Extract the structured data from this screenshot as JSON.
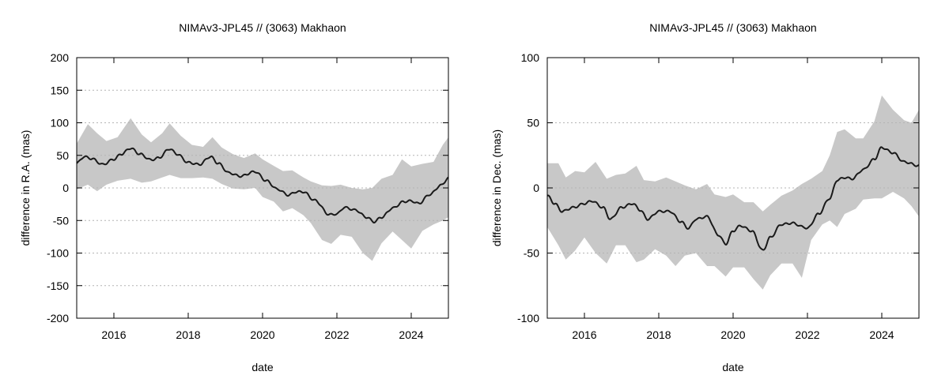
{
  "chart_data": [
    {
      "type": "area",
      "title": "NIMAv3-JPL45 // (3063) Makhaon",
      "xlabel": "date",
      "ylabel": "difference in R.A. (mas)",
      "xlim": [
        2015.0,
        2025.0
      ],
      "ylim": [
        -200,
        200
      ],
      "x_ticks": [
        2016,
        2018,
        2020,
        2022,
        2024
      ],
      "y_ticks": [
        -200,
        -150,
        -100,
        -50,
        0,
        50,
        100,
        150,
        200
      ],
      "grid": "horizontal dotted",
      "legend": "none",
      "colors": {
        "line": "#1a1a1a",
        "band": "#c8c8c8"
      },
      "series": [
        {
          "x": [
            2015.0,
            2015.2,
            2015.4,
            2015.7,
            2016.0,
            2016.2,
            2016.45,
            2016.7,
            2017.0,
            2017.2,
            2017.5,
            2017.7,
            2018.0,
            2018.3,
            2018.6,
            2018.8,
            2019.1,
            2019.4,
            2019.8,
            2020.1,
            2020.4,
            2020.7,
            2020.9,
            2021.1,
            2021.4,
            2021.8,
            2022.0,
            2022.2,
            2022.5,
            2022.8,
            2023.0,
            2023.2,
            2023.5,
            2023.8,
            2024.0,
            2024.2,
            2024.5,
            2024.8,
            2025.0
          ],
          "values": [
            38,
            48,
            45,
            36,
            44,
            52,
            61,
            52,
            43,
            46,
            60,
            52,
            39,
            36,
            48,
            38,
            23,
            18,
            25,
            11,
            -2,
            -11,
            -6,
            -6,
            -19,
            -41,
            -40,
            -30,
            -34,
            -45,
            -52,
            -45,
            -31,
            -21,
            -20,
            -24,
            -10,
            4,
            15
          ]
        },
        {
          "name": "uncertainty",
          "x": [
            2015.0,
            2015.3,
            2015.55,
            2015.8,
            2016.1,
            2016.45,
            2016.75,
            2017.0,
            2017.3,
            2017.5,
            2017.8,
            2018.1,
            2018.4,
            2018.65,
            2018.9,
            2019.2,
            2019.5,
            2019.8,
            2020.0,
            2020.3,
            2020.55,
            2020.8,
            2021.1,
            2021.3,
            2021.6,
            2021.85,
            2022.1,
            2022.4,
            2022.7,
            2022.95,
            2023.2,
            2023.5,
            2023.75,
            2024.0,
            2024.3,
            2024.6,
            2024.85,
            2025.0
          ],
          "upper": [
            68,
            98,
            84,
            72,
            78,
            107,
            82,
            70,
            84,
            99,
            80,
            66,
            63,
            78,
            62,
            52,
            46,
            53,
            44,
            34,
            26,
            27,
            16,
            10,
            4,
            3,
            5,
            0,
            -2,
            0,
            14,
            20,
            44,
            33,
            37,
            40,
            66,
            78
          ],
          "lower": [
            -2,
            5,
            -5,
            5,
            11,
            14,
            8,
            10,
            16,
            20,
            15,
            15,
            16,
            14,
            6,
            -1,
            -2,
            0,
            -14,
            -21,
            -36,
            -31,
            -42,
            -54,
            -80,
            -86,
            -72,
            -75,
            -100,
            -112,
            -85,
            -67,
            -80,
            -93,
            -66,
            -56,
            -50,
            -45
          ]
        }
      ]
    },
    {
      "type": "area",
      "title": "NIMAv3-JPL45 // (3063) Makhaon",
      "xlabel": "date",
      "ylabel": "difference in Dec. (mas)",
      "xlim": [
        2015.0,
        2025.0
      ],
      "ylim": [
        -100,
        100
      ],
      "x_ticks": [
        2016,
        2018,
        2020,
        2022,
        2024
      ],
      "y_ticks": [
        -100,
        -50,
        0,
        50,
        100
      ],
      "grid": "horizontal dotted",
      "legend": "none",
      "colors": {
        "line": "#1a1a1a",
        "band": "#c8c8c8"
      },
      "series": [
        {
          "x": [
            2015.0,
            2015.2,
            2015.4,
            2015.7,
            2016.0,
            2016.2,
            2016.5,
            2016.7,
            2017.0,
            2017.3,
            2017.5,
            2017.7,
            2018.0,
            2018.3,
            2018.6,
            2018.8,
            2019.0,
            2019.3,
            2019.6,
            2019.8,
            2020.0,
            2020.2,
            2020.5,
            2020.8,
            2021.0,
            2021.3,
            2021.6,
            2021.9,
            2022.0,
            2022.3,
            2022.6,
            2022.8,
            2023.0,
            2023.2,
            2023.5,
            2023.8,
            2024.0,
            2024.3,
            2024.6,
            2025.0
          ],
          "values": [
            -6,
            -12,
            -18,
            -15,
            -12,
            -10,
            -15,
            -24,
            -15,
            -12,
            -17,
            -24,
            -18,
            -18,
            -26,
            -31,
            -24,
            -22,
            -36,
            -43,
            -33,
            -29,
            -33,
            -48,
            -38,
            -28,
            -27,
            -30,
            -31,
            -20,
            -8,
            6,
            8,
            7,
            14,
            22,
            31,
            27,
            20,
            17
          ]
        },
        {
          "name": "uncertainty",
          "x": [
            2015.0,
            2015.3,
            2015.5,
            2015.75,
            2016.0,
            2016.3,
            2016.6,
            2016.85,
            2017.1,
            2017.4,
            2017.6,
            2017.9,
            2018.2,
            2018.45,
            2018.7,
            2019.0,
            2019.3,
            2019.5,
            2019.8,
            2020.0,
            2020.3,
            2020.55,
            2020.8,
            2021.0,
            2021.3,
            2021.6,
            2021.85,
            2022.1,
            2022.4,
            2022.6,
            2022.8,
            2023.0,
            2023.3,
            2023.5,
            2023.8,
            2024.0,
            2024.3,
            2024.6,
            2024.8,
            2025.0
          ],
          "upper": [
            19,
            19,
            8,
            13,
            12,
            20,
            7,
            10,
            11,
            17,
            6,
            5,
            8,
            5,
            2,
            -1,
            3,
            -5,
            -7,
            -5,
            -11,
            -11,
            -18,
            -13,
            -6,
            -2,
            3,
            7,
            13,
            25,
            43,
            45,
            38,
            38,
            51,
            71,
            60,
            52,
            50,
            60
          ],
          "lower": [
            -30,
            -44,
            -55,
            -48,
            -38,
            -50,
            -58,
            -44,
            -44,
            -57,
            -55,
            -47,
            -52,
            -60,
            -52,
            -50,
            -60,
            -60,
            -68,
            -61,
            -61,
            -70,
            -78,
            -67,
            -58,
            -58,
            -69,
            -40,
            -28,
            -25,
            -30,
            -20,
            -16,
            -9,
            -8,
            -8,
            -3,
            -8,
            -14,
            -22
          ]
        }
      ]
    }
  ]
}
